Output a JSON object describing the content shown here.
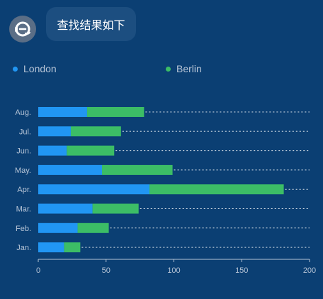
{
  "chat": {
    "avatar_icon": "headset-robot-icon",
    "message": "查找结果如下"
  },
  "colors": {
    "background": "#0b3f73",
    "london": "#2196f3",
    "berlin": "#3cbd66",
    "text": "#b6c4d6"
  },
  "chart_data": {
    "type": "bar",
    "orientation": "horizontal",
    "stacked": true,
    "categories": [
      "Aug.",
      "Jul.",
      "Jun.",
      "May.",
      "Apr.",
      "Mar.",
      "Feb.",
      "Jan."
    ],
    "series": [
      {
        "name": "London",
        "values": [
          36,
          24,
          21,
          47,
          82,
          40,
          29,
          19
        ]
      },
      {
        "name": "Berlin",
        "values": [
          42,
          37,
          35,
          52,
          99,
          34,
          23,
          12
        ]
      }
    ],
    "x_ticks": [
      "0",
      "50",
      "100",
      "150",
      "200"
    ],
    "xlim": [
      0,
      200
    ],
    "legend_position": "top",
    "grid": false
  }
}
